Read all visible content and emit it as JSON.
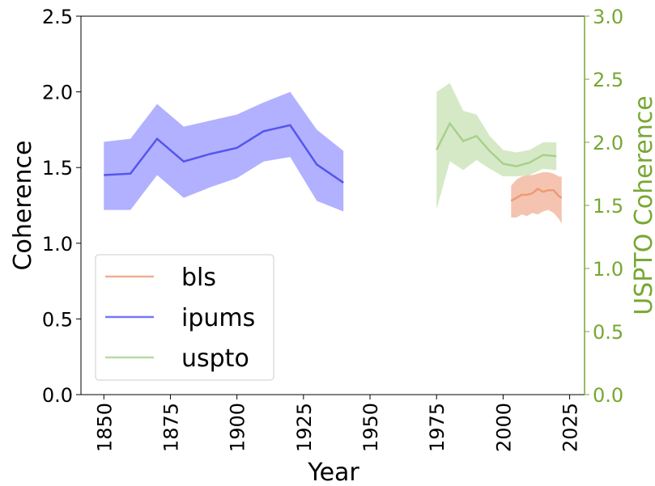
{
  "chart_data": {
    "type": "line",
    "xlabel": "Year",
    "ylabel": "Coherence",
    "y2label": "USPTO Coherence",
    "xlim": [
      1841.4,
      2030.6
    ],
    "xticks": [
      1850,
      1875,
      1900,
      1925,
      1950,
      1975,
      2000,
      2025
    ],
    "ylim": [
      0,
      2.5
    ],
    "yticks": [
      {
        "value": 0,
        "label": "0.0"
      },
      0.5,
      {
        "value": 1,
        "label": "1.0"
      },
      1.5,
      {
        "value": 2,
        "label": "2.0"
      },
      2.5
    ],
    "y2lim": [
      0,
      3
    ],
    "y2ticks": [
      {
        "value": 0,
        "label": "0.0"
      },
      0.5,
      {
        "value": 1,
        "label": "1.0"
      },
      1.5,
      {
        "value": 2,
        "label": "2.0"
      },
      2.5,
      {
        "value": 3,
        "label": "3.0"
      }
    ],
    "y2color": "#77a832",
    "legend": "lower left",
    "series": [
      {
        "name": "bls",
        "color": "#ee9a77",
        "band_color": "#f4c4b1",
        "x": [
          2003,
          2005,
          2007,
          2009,
          2011,
          2013,
          2015,
          2017,
          2019,
          2021,
          2022
        ],
        "values": [
          1.28,
          1.3,
          1.32,
          1.32,
          1.33,
          1.36,
          1.34,
          1.35,
          1.35,
          1.31,
          1.3
        ],
        "upper": [
          1.38,
          1.42,
          1.44,
          1.45,
          1.45,
          1.46,
          1.47,
          1.47,
          1.46,
          1.44,
          1.44
        ],
        "lower": [
          1.17,
          1.17,
          1.19,
          1.18,
          1.2,
          1.19,
          1.21,
          1.22,
          1.2,
          1.16,
          1.13
        ]
      },
      {
        "name": "ipums",
        "color": "#5555ee",
        "band_color": "#b1b1ff",
        "x": [
          1850,
          1860,
          1870,
          1880,
          1890,
          1900,
          1910,
          1920,
          1930,
          1940
        ],
        "values": [
          1.45,
          1.46,
          1.69,
          1.54,
          1.59,
          1.63,
          1.74,
          1.78,
          1.52,
          1.4
        ],
        "upper": [
          1.67,
          1.69,
          1.92,
          1.77,
          1.81,
          1.85,
          1.93,
          2.0,
          1.75,
          1.61
        ],
        "lower": [
          1.22,
          1.22,
          1.45,
          1.3,
          1.37,
          1.43,
          1.54,
          1.57,
          1.28,
          1.21
        ]
      },
      {
        "name": "uspto",
        "color": "#a8d08c",
        "band_color": "#d6e9c6",
        "axis": "y2",
        "x": [
          1975,
          1980,
          1985,
          1990,
          1995,
          2000,
          2005,
          2010,
          2015,
          2020
        ],
        "values": [
          1.94,
          2.15,
          2.01,
          2.05,
          1.93,
          1.83,
          1.81,
          1.84,
          1.9,
          1.89
        ],
        "upper": [
          2.4,
          2.47,
          2.25,
          2.22,
          2.05,
          1.94,
          1.92,
          1.94,
          2.0,
          2.0
        ],
        "lower": [
          1.47,
          1.85,
          1.78,
          1.86,
          1.79,
          1.73,
          1.73,
          1.74,
          1.79,
          1.78
        ]
      }
    ]
  }
}
